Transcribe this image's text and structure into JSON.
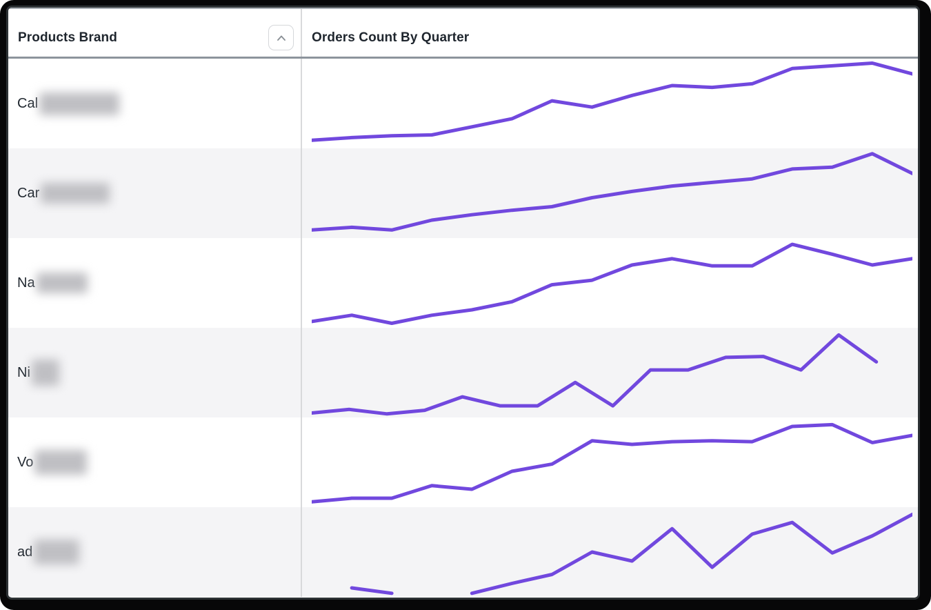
{
  "header": {
    "col1_label": "Products Brand",
    "col2_label": "Orders Count By Quarter",
    "sort_icon": "chevron-up"
  },
  "style": {
    "accent_color": "#6b41dd",
    "stripe_color": "#f4f4f6",
    "header_text_color": "#1f262e",
    "frame_color": "#070708"
  },
  "chart_data": {
    "type": "line",
    "title": "Orders Count By Quarter",
    "xlabel": "",
    "ylabel": "",
    "x_axis": "16 unlabeled quarterly points per sparkline",
    "y_axis": "unlabeled; values are relative estimates on a 0-100 scale",
    "grid": false,
    "legend": false,
    "series": [
      {
        "brand_prefix": "Cal",
        "brand_redacted": true,
        "striped": false,
        "x_end": 1.0,
        "redact_w": 116,
        "redact_h": 33,
        "values": [
          9,
          12,
          14,
          15,
          24,
          33,
          53,
          46,
          59,
          70,
          68,
          72,
          89,
          92,
          95,
          83
        ]
      },
      {
        "brand_prefix": "Car",
        "brand_redacted": true,
        "striped": true,
        "x_end": 1.0,
        "redact_w": 100,
        "redact_h": 30,
        "values": [
          9,
          12,
          9,
          20,
          26,
          31,
          35,
          45,
          52,
          58,
          62,
          66,
          77,
          79,
          94,
          72
        ]
      },
      {
        "brand_prefix": "Na",
        "brand_redacted": true,
        "striped": false,
        "x_end": 1.0,
        "redact_w": 74,
        "redact_h": 30,
        "values": [
          7,
          14,
          5,
          14,
          20,
          29,
          48,
          53,
          70,
          77,
          69,
          69,
          93,
          82,
          70,
          77
        ]
      },
      {
        "brand_prefix": "Ni",
        "brand_redacted": true,
        "striped": true,
        "x_end": 0.94,
        "redact_w": 40,
        "redact_h": 38,
        "values": [
          5,
          9,
          4,
          8,
          23,
          13,
          13,
          39,
          13,
          53,
          53,
          67,
          68,
          53,
          92,
          62
        ]
      },
      {
        "brand_prefix": "Vo",
        "brand_redacted": true,
        "striped": false,
        "x_end": 1.0,
        "redact_w": 76,
        "redact_h": 36,
        "values": [
          6,
          10,
          10,
          24,
          20,
          40,
          48,
          74,
          70,
          73,
          74,
          73,
          90,
          92,
          72,
          80
        ]
      },
      {
        "brand_prefix": "ad",
        "brand_redacted": true,
        "striped": true,
        "x_end": 1.0,
        "redact_w": 66,
        "redact_h": 36,
        "values": [
          null,
          10,
          4,
          null,
          4,
          15,
          25,
          50,
          40,
          76,
          33,
          70,
          83,
          49,
          68,
          92
        ]
      }
    ]
  }
}
